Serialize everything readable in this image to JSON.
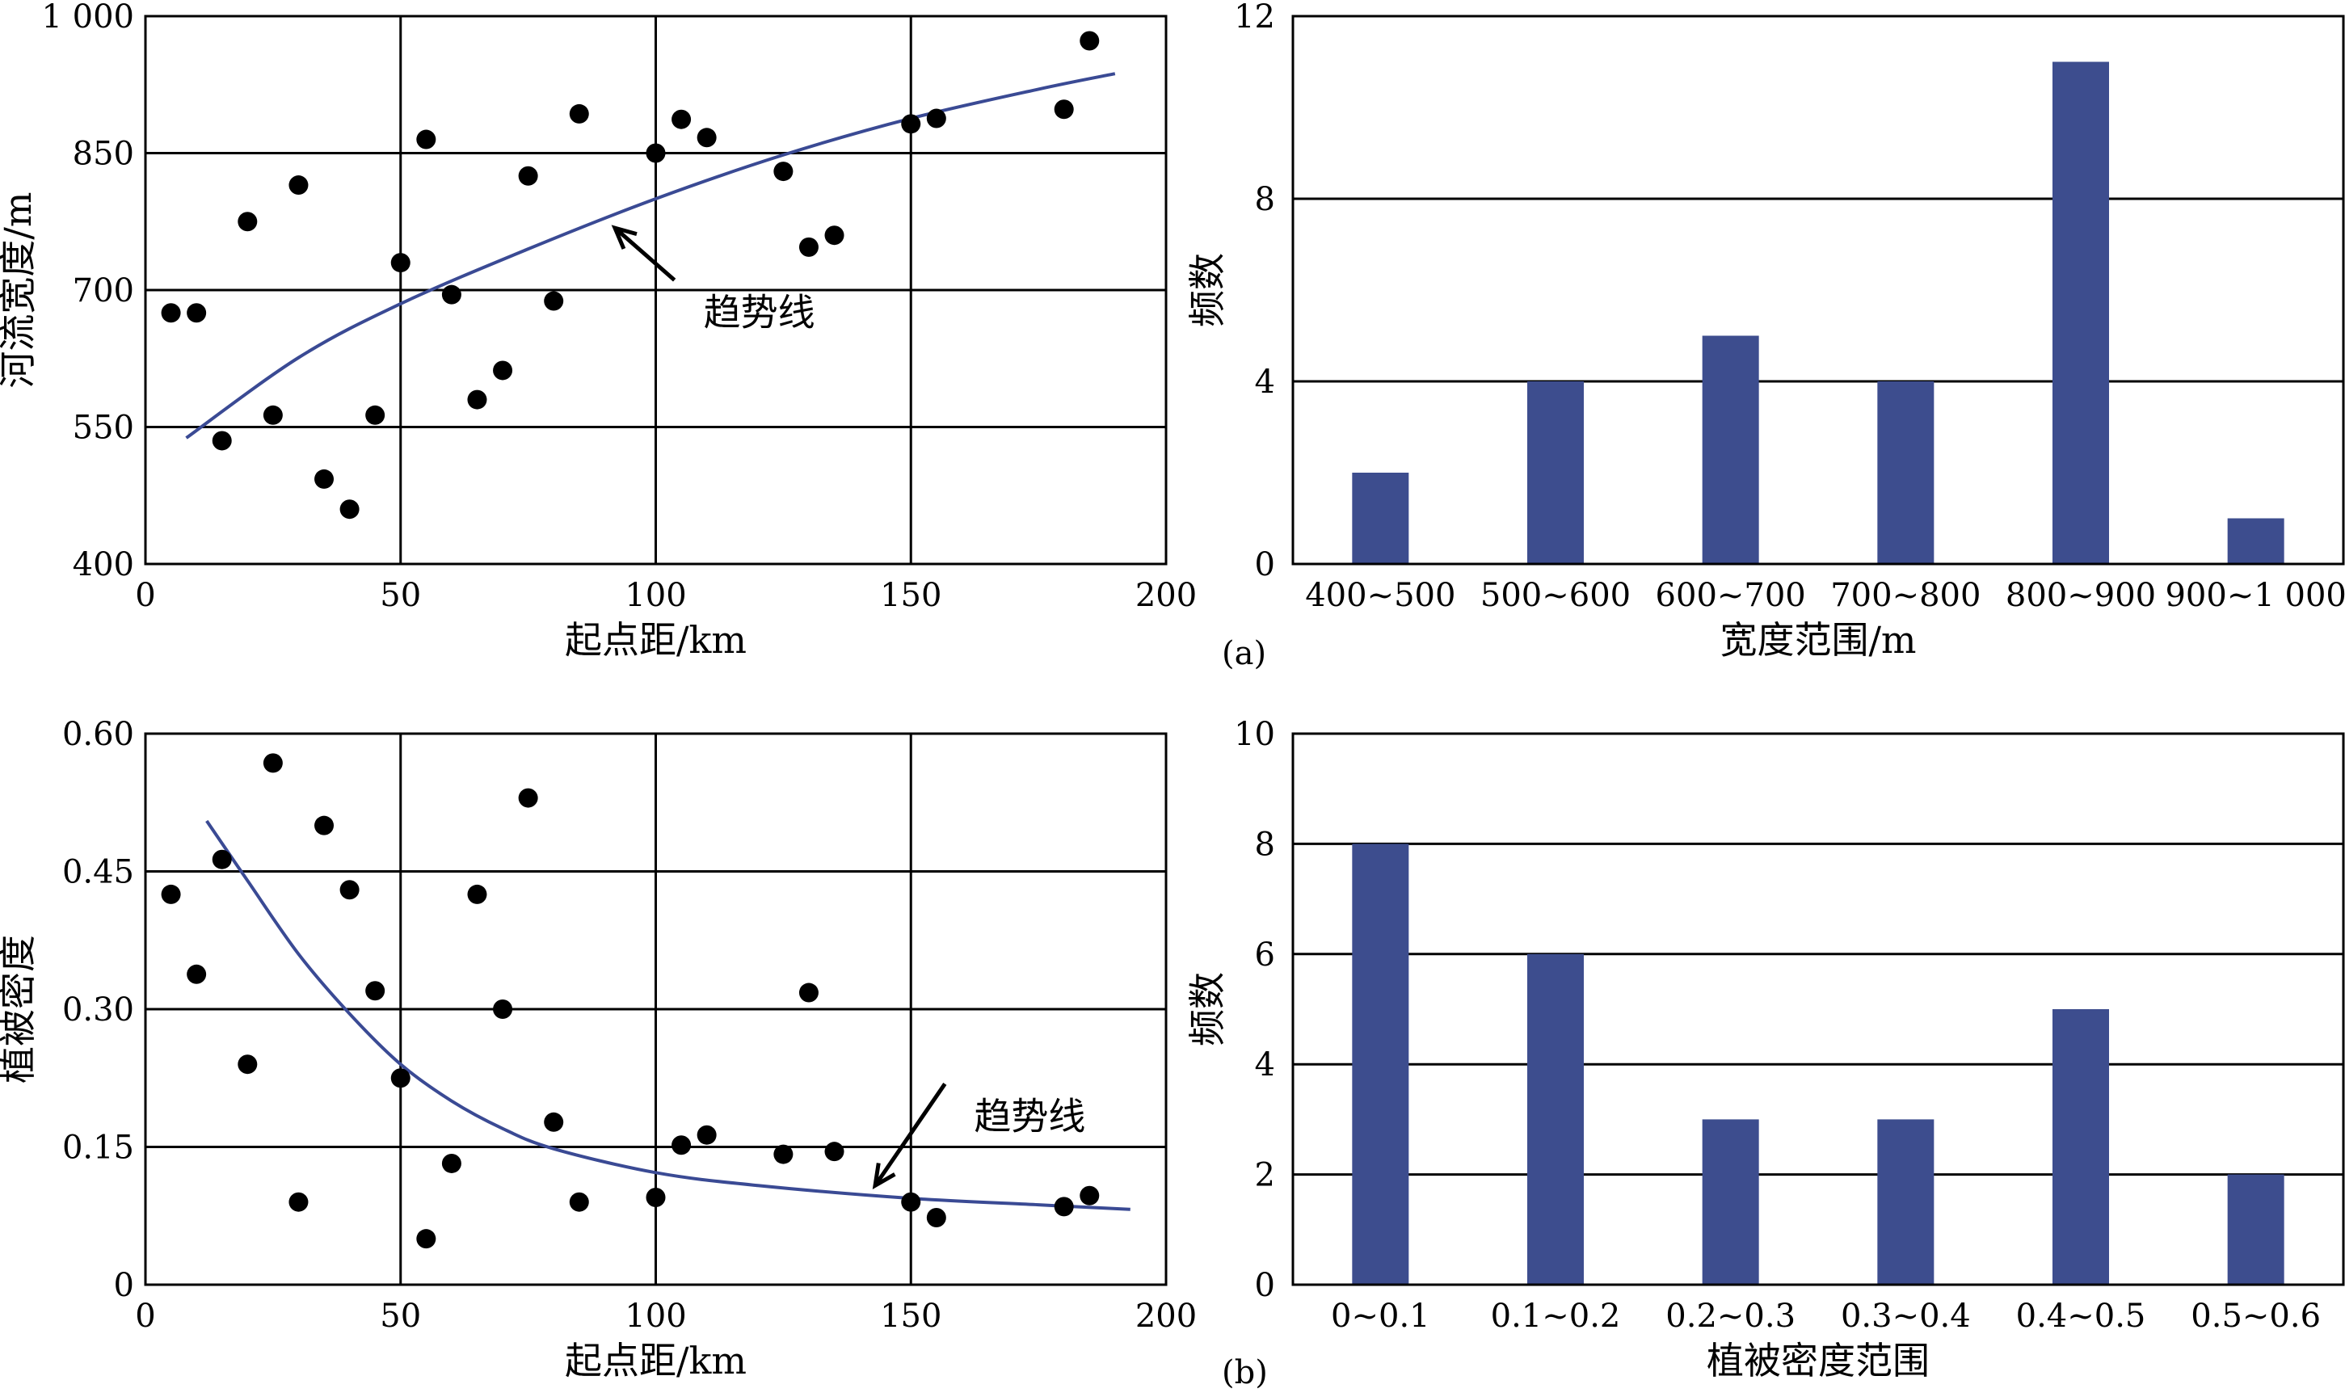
{
  "chart_data": [
    {
      "id": "a-scatter",
      "type": "scatter",
      "xlabel": "起点距/km",
      "ylabel": "河流宽度/m",
      "xlim": [
        0,
        200
      ],
      "ylim": [
        400,
        1000
      ],
      "xticks": [
        0,
        50,
        100,
        150,
        200
      ],
      "yticks": [
        400,
        550,
        700,
        850,
        1000
      ],
      "ytick_labels": [
        "400",
        "550",
        "700",
        "850",
        "1 000"
      ],
      "grid": true,
      "points": [
        [
          5,
          675
        ],
        [
          10,
          675
        ],
        [
          15,
          535
        ],
        [
          20,
          775
        ],
        [
          25,
          563
        ],
        [
          30,
          815
        ],
        [
          35,
          493
        ],
        [
          40,
          460
        ],
        [
          45,
          563
        ],
        [
          50,
          730
        ],
        [
          55,
          865
        ],
        [
          60,
          695
        ],
        [
          65,
          580
        ],
        [
          70,
          612
        ],
        [
          75,
          825
        ],
        [
          80,
          688
        ],
        [
          85,
          893
        ],
        [
          100,
          850
        ],
        [
          105,
          887
        ],
        [
          110,
          867
        ],
        [
          125,
          830
        ],
        [
          130,
          747
        ],
        [
          135,
          760
        ],
        [
          150,
          882
        ],
        [
          155,
          888
        ],
        [
          180,
          898
        ],
        [
          185,
          973
        ]
      ],
      "trendline": {
        "from": 8,
        "to": 190,
        "points": [
          [
            8,
            538
          ],
          [
            30,
            626
          ],
          [
            50,
            685
          ],
          [
            75,
            745
          ],
          [
            100,
            800
          ],
          [
            125,
            848
          ],
          [
            150,
            888
          ],
          [
            175,
            920
          ],
          [
            190,
            937
          ]
        ]
      },
      "annotation": {
        "text": "趋势线",
        "points_to": [
          92,
          768
        ],
        "text_at": [
          110,
          672
        ]
      },
      "panel_label": "(a)"
    },
    {
      "id": "a-hist",
      "type": "bar",
      "xlabel": "宽度范围/m",
      "ylabel": "频数",
      "categories": [
        "400~500",
        "500~600",
        "600~700",
        "700~800",
        "800~900",
        "900~1 000"
      ],
      "values": [
        2,
        4,
        5,
        4,
        11,
        1
      ],
      "ylim": [
        0,
        12
      ],
      "yticks": [
        0,
        4,
        8,
        12
      ],
      "grid": true
    },
    {
      "id": "b-scatter",
      "type": "scatter",
      "xlabel": "起点距/km",
      "ylabel": "植被密度",
      "xlim": [
        0,
        200
      ],
      "ylim": [
        0,
        0.6
      ],
      "xticks": [
        0,
        50,
        100,
        150,
        200
      ],
      "yticks": [
        0,
        0.15,
        0.3,
        0.45,
        0.6
      ],
      "ytick_labels": [
        "0",
        "0.15",
        "0.30",
        "0.45",
        "0.60"
      ],
      "grid": true,
      "points": [
        [
          5,
          0.425
        ],
        [
          10,
          0.338
        ],
        [
          15,
          0.463
        ],
        [
          20,
          0.24
        ],
        [
          25,
          0.568
        ],
        [
          30,
          0.09
        ],
        [
          35,
          0.5
        ],
        [
          40,
          0.43
        ],
        [
          45,
          0.32
        ],
        [
          50,
          0.225
        ],
        [
          55,
          0.05
        ],
        [
          60,
          0.132
        ],
        [
          65,
          0.425
        ],
        [
          70,
          0.3
        ],
        [
          75,
          0.53
        ],
        [
          80,
          0.177
        ],
        [
          85,
          0.09
        ],
        [
          100,
          0.095
        ],
        [
          105,
          0.152
        ],
        [
          110,
          0.163
        ],
        [
          125,
          0.142
        ],
        [
          130,
          0.318
        ],
        [
          135,
          0.145
        ],
        [
          150,
          0.09
        ],
        [
          155,
          0.073
        ],
        [
          180,
          0.085
        ],
        [
          185,
          0.097
        ]
      ],
      "trendline": {
        "from": 12,
        "to": 193,
        "points": [
          [
            12,
            0.505
          ],
          [
            20,
            0.44
          ],
          [
            30,
            0.36
          ],
          [
            40,
            0.295
          ],
          [
            50,
            0.24
          ],
          [
            60,
            0.2
          ],
          [
            70,
            0.17
          ],
          [
            80,
            0.148
          ],
          [
            100,
            0.122
          ],
          [
            120,
            0.108
          ],
          [
            150,
            0.094
          ],
          [
            175,
            0.087
          ],
          [
            193,
            0.082
          ]
        ]
      },
      "annotation": {
        "text": "趋势线",
        "points_to": [
          143,
          0.108
        ],
        "text_at": [
          163,
          0.18
        ]
      },
      "panel_label": "(b)"
    },
    {
      "id": "b-hist",
      "type": "bar",
      "xlabel": "植被密度范围",
      "ylabel": "频数",
      "categories": [
        "0~0.1",
        "0.1~0.2",
        "0.2~0.3",
        "0.3~0.4",
        "0.4~0.5",
        "0.5~0.6"
      ],
      "values": [
        8,
        6,
        3,
        3,
        5,
        2
      ],
      "ylim": [
        0,
        10
      ],
      "yticks": [
        0,
        2,
        4,
        6,
        8,
        10
      ],
      "grid": true
    }
  ]
}
